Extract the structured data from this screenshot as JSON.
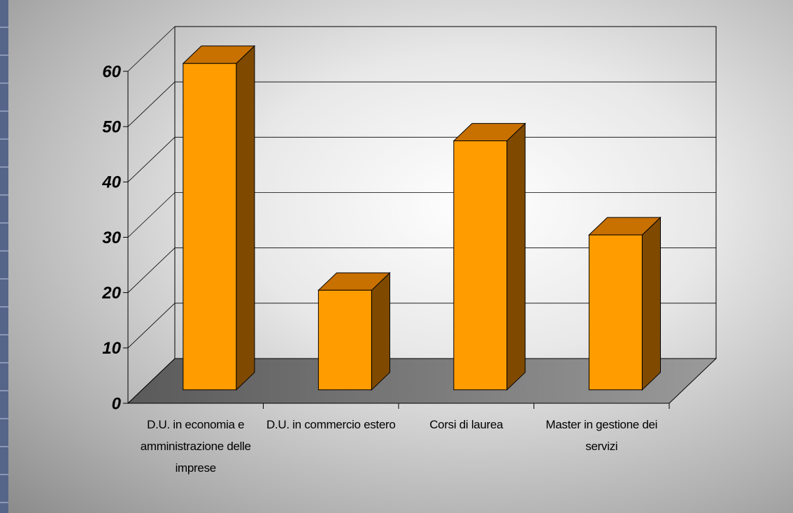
{
  "chart_data": {
    "type": "bar3d",
    "categories": [
      "D.U. in economia e amministrazione delle imprese",
      "D.U. in commercio estero",
      "Corsi di laurea",
      "Master in gestione dei servizi"
    ],
    "values": [
      59,
      18,
      45,
      28
    ],
    "color": "#ff9c00",
    "ylim": [
      0,
      60
    ],
    "yticks": [
      0,
      10,
      20,
      30,
      40,
      50,
      60
    ],
    "grid": true
  }
}
